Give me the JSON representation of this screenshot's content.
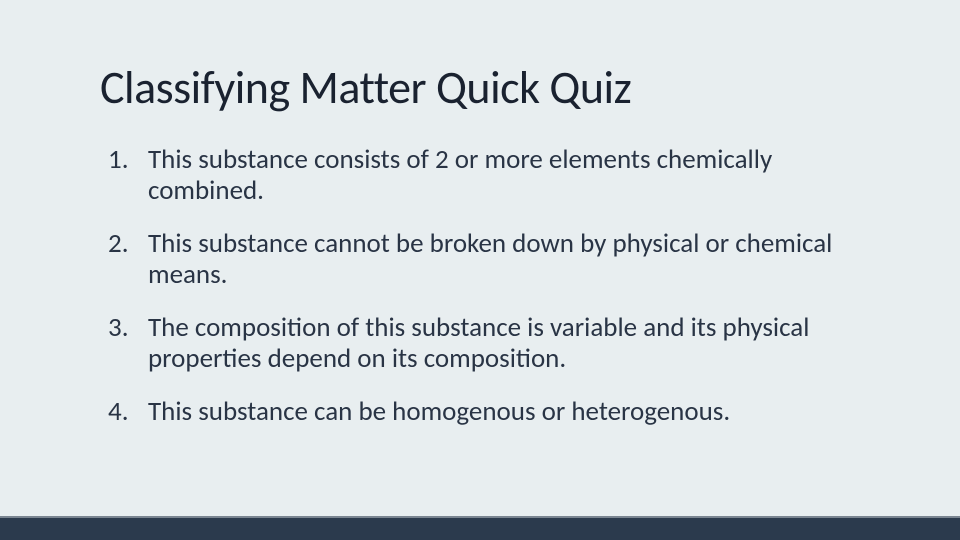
{
  "slide": {
    "background_color": "#e8eef0",
    "text_color": "#293445",
    "title_color": "#1a2230",
    "title_fontsize": 46,
    "body_fontsize": 27,
    "footer_bar_color": "#2b3a4d",
    "footer_line_color": "#7a8591",
    "title": "Classifying Matter Quick Quiz",
    "items": [
      "This substance consists of 2 or more elements chemically combined.",
      "This substance cannot be broken down by physical or chemical means.",
      "The composition of this substance is variable and its physical properties depend on its composition.",
      "This substance can be homogenous or heterogenous."
    ]
  }
}
